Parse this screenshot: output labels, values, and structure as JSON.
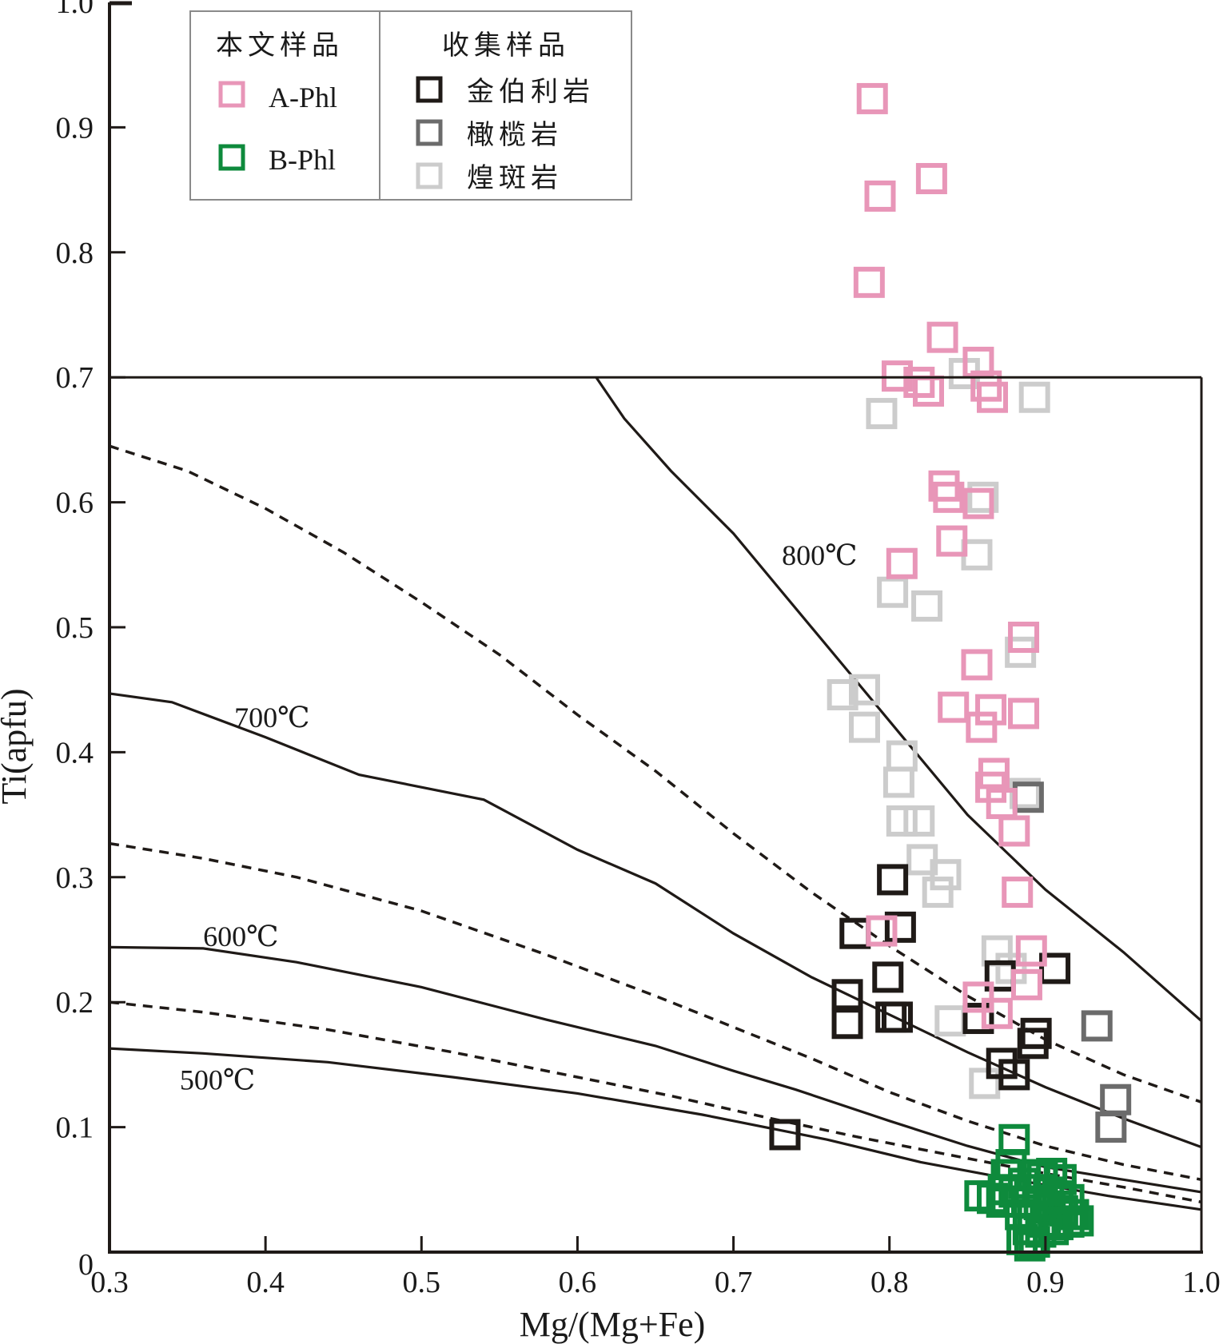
{
  "chart_data": {
    "type": "scatter",
    "title": "",
    "xlabel": "Mg/(Mg+Fe)",
    "ylabel": "Ti(apfu)",
    "xlim": [
      0.3,
      1.0
    ],
    "ylim": [
      0,
      1.0
    ],
    "grid": false,
    "x_ticks": [
      "0.3",
      "0.4",
      "0.5",
      "0.6",
      "0.7",
      "0.8",
      "0.9",
      "1.0"
    ],
    "x_tick_values": [
      0.3,
      0.4,
      0.5,
      0.6,
      0.7,
      0.8,
      0.9,
      1.0
    ],
    "y_ticks": [
      "0",
      "0.1",
      "0.2",
      "0.3",
      "0.4",
      "0.5",
      "0.6",
      "0.7",
      "0.8",
      "0.9",
      "1.0"
    ],
    "y_tick_values": [
      0,
      0.1,
      0.2,
      0.3,
      0.4,
      0.5,
      0.6,
      0.7,
      0.8,
      0.9,
      1.0
    ],
    "legend": {
      "placement": "top-left",
      "groups": [
        {
          "title": "本文样品",
          "entries": [
            "A-Phl",
            "B-Phl"
          ]
        },
        {
          "title": "收集样品",
          "entries": [
            "金伯利岩",
            "橄榄岩",
            "煌斑岩"
          ]
        }
      ]
    },
    "boundary_line_y": 0.7,
    "isotherms": [
      {
        "label": "800℃",
        "style": "solid",
        "points": [
          [
            0.612,
            0.7
          ],
          [
            0.63,
            0.667
          ],
          [
            0.66,
            0.625
          ],
          [
            0.7,
            0.575
          ],
          [
            0.73,
            0.53
          ],
          [
            0.77,
            0.47
          ],
          [
            0.81,
            0.41
          ],
          [
            0.85,
            0.35
          ],
          [
            0.9,
            0.29
          ],
          [
            0.95,
            0.24
          ],
          [
            1.0,
            0.185
          ]
        ]
      },
      {
        "label": "",
        "style": "dashed",
        "points": [
          [
            0.3,
            0.645
          ],
          [
            0.35,
            0.625
          ],
          [
            0.4,
            0.595
          ],
          [
            0.45,
            0.56
          ],
          [
            0.5,
            0.52
          ],
          [
            0.55,
            0.478
          ],
          [
            0.6,
            0.43
          ],
          [
            0.65,
            0.385
          ],
          [
            0.7,
            0.335
          ],
          [
            0.75,
            0.288
          ],
          [
            0.8,
            0.245
          ],
          [
            0.85,
            0.205
          ],
          [
            0.9,
            0.17
          ],
          [
            0.95,
            0.142
          ],
          [
            1.0,
            0.12
          ]
        ]
      },
      {
        "label": "700℃",
        "style": "solid",
        "points": [
          [
            0.3,
            0.447
          ],
          [
            0.34,
            0.44
          ],
          [
            0.4,
            0.412
          ],
          [
            0.46,
            0.382
          ],
          [
            0.54,
            0.362
          ],
          [
            0.6,
            0.322
          ],
          [
            0.65,
            0.295
          ],
          [
            0.7,
            0.255
          ],
          [
            0.75,
            0.22
          ],
          [
            0.8,
            0.19
          ],
          [
            0.85,
            0.16
          ],
          [
            0.9,
            0.132
          ],
          [
            0.95,
            0.107
          ],
          [
            1.0,
            0.084
          ]
        ]
      },
      {
        "label": "",
        "style": "dashed",
        "points": [
          [
            0.3,
            0.327
          ],
          [
            0.36,
            0.315
          ],
          [
            0.42,
            0.3
          ],
          [
            0.5,
            0.273
          ],
          [
            0.58,
            0.238
          ],
          [
            0.65,
            0.205
          ],
          [
            0.7,
            0.18
          ],
          [
            0.75,
            0.155
          ],
          [
            0.8,
            0.128
          ],
          [
            0.85,
            0.105
          ],
          [
            0.9,
            0.085
          ],
          [
            0.95,
            0.07
          ],
          [
            1.0,
            0.058
          ]
        ]
      },
      {
        "label": "600℃",
        "style": "solid",
        "points": [
          [
            0.3,
            0.244
          ],
          [
            0.36,
            0.243
          ],
          [
            0.42,
            0.232
          ],
          [
            0.5,
            0.212
          ],
          [
            0.58,
            0.186
          ],
          [
            0.65,
            0.165
          ],
          [
            0.7,
            0.145
          ],
          [
            0.74,
            0.13
          ],
          [
            0.8,
            0.105
          ],
          [
            0.85,
            0.085
          ],
          [
            0.9,
            0.068
          ],
          [
            0.95,
            0.058
          ],
          [
            1.0,
            0.048
          ]
        ]
      },
      {
        "label": "",
        "style": "dashed",
        "points": [
          [
            0.3,
            0.2
          ],
          [
            0.36,
            0.192
          ],
          [
            0.44,
            0.178
          ],
          [
            0.52,
            0.16
          ],
          [
            0.6,
            0.14
          ],
          [
            0.66,
            0.125
          ],
          [
            0.72,
            0.108
          ],
          [
            0.78,
            0.092
          ],
          [
            0.85,
            0.075
          ],
          [
            0.9,
            0.063
          ],
          [
            0.95,
            0.052
          ],
          [
            1.0,
            0.04
          ]
        ]
      },
      {
        "label": "500℃",
        "style": "solid",
        "points": [
          [
            0.3,
            0.163
          ],
          [
            0.36,
            0.159
          ],
          [
            0.44,
            0.152
          ],
          [
            0.52,
            0.14
          ],
          [
            0.6,
            0.127
          ],
          [
            0.68,
            0.11
          ],
          [
            0.76,
            0.09
          ],
          [
            0.82,
            0.072
          ],
          [
            0.88,
            0.058
          ],
          [
            0.94,
            0.045
          ],
          [
            1.0,
            0.034
          ]
        ]
      }
    ],
    "isotherm_label_positions": {
      "800℃": [
        0.731,
        0.55
      ],
      "700℃": [
        0.38,
        0.42
      ],
      "600℃": [
        0.36,
        0.245
      ],
      "500℃": [
        0.345,
        0.13
      ]
    },
    "series": [
      {
        "name": "A-Phl",
        "color": "#e896b8",
        "points": [
          [
            0.789,
            0.923
          ],
          [
            0.794,
            0.845
          ],
          [
            0.827,
            0.859
          ],
          [
            0.787,
            0.776
          ],
          [
            0.834,
            0.732
          ],
          [
            0.857,
            0.712
          ],
          [
            0.805,
            0.701
          ],
          [
            0.819,
            0.696
          ],
          [
            0.825,
            0.689
          ],
          [
            0.862,
            0.693
          ],
          [
            0.866,
            0.684
          ],
          [
            0.835,
            0.613
          ],
          [
            0.838,
            0.604
          ],
          [
            0.857,
            0.599
          ],
          [
            0.84,
            0.569
          ],
          [
            0.808,
            0.551
          ],
          [
            0.886,
            0.492
          ],
          [
            0.856,
            0.47
          ],
          [
            0.886,
            0.431
          ],
          [
            0.841,
            0.436
          ],
          [
            0.865,
            0.434
          ],
          [
            0.859,
            0.42
          ],
          [
            0.867,
            0.383
          ],
          [
            0.865,
            0.372
          ],
          [
            0.872,
            0.359
          ],
          [
            0.88,
            0.337
          ],
          [
            0.882,
            0.288
          ],
          [
            0.795,
            0.257
          ],
          [
            0.891,
            0.241
          ],
          [
            0.888,
            0.214
          ],
          [
            0.857,
            0.204
          ],
          [
            0.869,
            0.191
          ]
        ]
      },
      {
        "name": "B-Phl",
        "color": "#0e8a3c",
        "points": [
          [
            0.88,
            0.09
          ],
          [
            0.878,
            0.07
          ],
          [
            0.875,
            0.062
          ],
          [
            0.873,
            0.05
          ],
          [
            0.858,
            0.045
          ],
          [
            0.866,
            0.043
          ],
          [
            0.872,
            0.04
          ],
          [
            0.88,
            0.048
          ],
          [
            0.886,
            0.055
          ],
          [
            0.892,
            0.062
          ],
          [
            0.898,
            0.06
          ],
          [
            0.904,
            0.063
          ],
          [
            0.91,
            0.058
          ],
          [
            0.895,
            0.05
          ],
          [
            0.902,
            0.048
          ],
          [
            0.908,
            0.045
          ],
          [
            0.915,
            0.042
          ],
          [
            0.888,
            0.04
          ],
          [
            0.896,
            0.038
          ],
          [
            0.903,
            0.035
          ],
          [
            0.911,
            0.033
          ],
          [
            0.918,
            0.03
          ],
          [
            0.884,
            0.03
          ],
          [
            0.892,
            0.027
          ],
          [
            0.9,
            0.024
          ],
          [
            0.908,
            0.022
          ],
          [
            0.915,
            0.024
          ],
          [
            0.921,
            0.025
          ],
          [
            0.889,
            0.018
          ],
          [
            0.897,
            0.016
          ],
          [
            0.905,
            0.018
          ],
          [
            0.885,
            0.01
          ],
          [
            0.893,
            0.008
          ],
          [
            0.89,
            0.005
          ]
        ]
      },
      {
        "name": "金伯利岩",
        "color": "#1f1a17",
        "points": [
          [
            0.802,
            0.298
          ],
          [
            0.778,
            0.255
          ],
          [
            0.807,
            0.26
          ],
          [
            0.799,
            0.22
          ],
          [
            0.773,
            0.206
          ],
          [
            0.773,
            0.183
          ],
          [
            0.801,
            0.188
          ],
          [
            0.805,
            0.188
          ],
          [
            0.871,
            0.221
          ],
          [
            0.906,
            0.227
          ],
          [
            0.857,
            0.187
          ],
          [
            0.894,
            0.175
          ],
          [
            0.892,
            0.167
          ],
          [
            0.872,
            0.151
          ],
          [
            0.88,
            0.142
          ],
          [
            0.733,
            0.094
          ]
        ]
      },
      {
        "name": "橄榄岩",
        "color": "#6b6b6b",
        "points": [
          [
            0.889,
            0.364
          ],
          [
            0.933,
            0.181
          ],
          [
            0.945,
            0.122
          ],
          [
            0.942,
            0.1
          ]
        ]
      },
      {
        "name": "煌斑岩",
        "color": "#cccccc",
        "points": [
          [
            0.795,
            0.671
          ],
          [
            0.848,
            0.703
          ],
          [
            0.893,
            0.684
          ],
          [
            0.86,
            0.604
          ],
          [
            0.856,
            0.558
          ],
          [
            0.802,
            0.528
          ],
          [
            0.824,
            0.517
          ],
          [
            0.884,
            0.48
          ],
          [
            0.77,
            0.446
          ],
          [
            0.784,
            0.45
          ],
          [
            0.784,
            0.42
          ],
          [
            0.808,
            0.397
          ],
          [
            0.806,
            0.376
          ],
          [
            0.808,
            0.345
          ],
          [
            0.819,
            0.345
          ],
          [
            0.821,
            0.314
          ],
          [
            0.836,
            0.302
          ],
          [
            0.831,
            0.288
          ],
          [
            0.887,
            0.367
          ],
          [
            0.869,
            0.241
          ],
          [
            0.878,
            0.227
          ],
          [
            0.839,
            0.185
          ],
          [
            0.861,
            0.135
          ]
        ]
      }
    ]
  }
}
